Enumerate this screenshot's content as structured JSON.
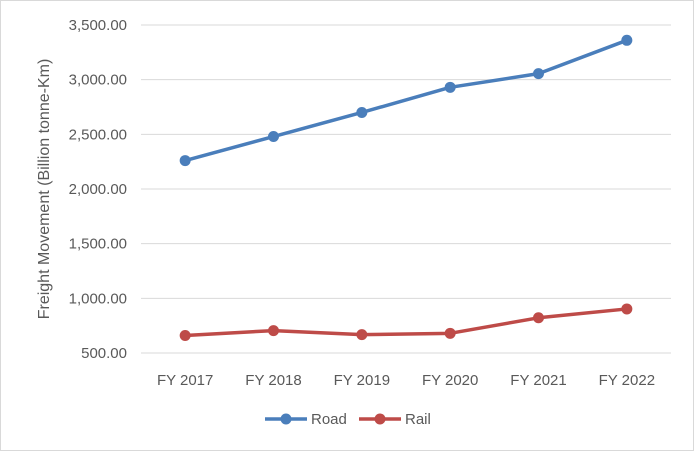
{
  "chart_data": {
    "type": "line",
    "title": "",
    "xlabel": "",
    "ylabel": "Freight Movement (Billion tonne-Km)",
    "categories": [
      "FY 2017",
      "FY 2018",
      "FY 2019",
      "FY 2020",
      "FY 2021",
      "FY 2022"
    ],
    "ylim": [
      500,
      3500
    ],
    "yticks": [
      500,
      1000,
      1500,
      2000,
      2500,
      3000,
      3500
    ],
    "ytick_labels": [
      "500.00",
      "1,000.00",
      "1,500.00",
      "2,000.00",
      "2,500.00",
      "3,000.00",
      "3,500.00"
    ],
    "grid": true,
    "legend_position": "bottom",
    "series": [
      {
        "name": "Road",
        "color": "#4a7ebb",
        "values": [
          2260,
          2480,
          2700,
          2930,
          3055,
          3360
        ]
      },
      {
        "name": "Rail",
        "color": "#be4b48",
        "values": [
          660,
          705,
          668,
          680,
          822,
          903
        ]
      }
    ]
  }
}
